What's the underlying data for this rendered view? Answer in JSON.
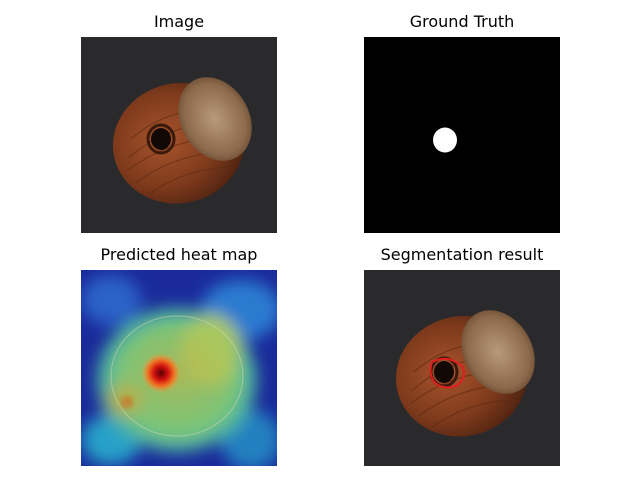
{
  "panels": [
    {
      "title": "Image"
    },
    {
      "title": "Ground Truth"
    },
    {
      "title": "Predicted heat map"
    },
    {
      "title": "Segmentation result"
    }
  ]
}
